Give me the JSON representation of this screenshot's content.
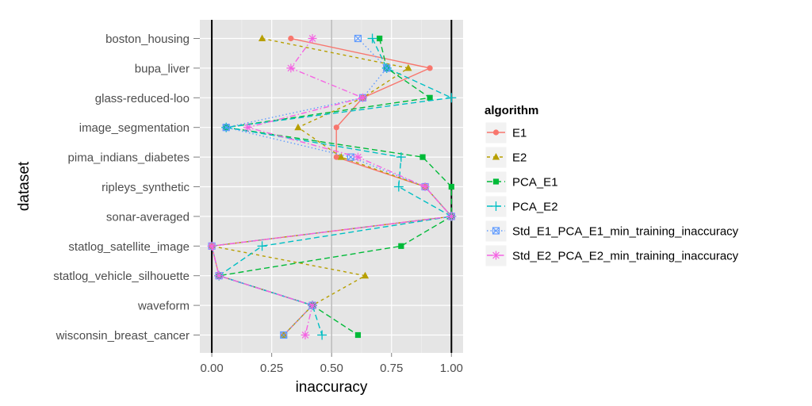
{
  "chart_data": {
    "type": "line",
    "xlabel": "inaccuracy",
    "ylabel": "dataset",
    "xlim": [
      -0.05,
      1.05
    ],
    "x_ticks": [
      "0.00",
      "0.25",
      "0.50",
      "0.75",
      "1.00"
    ],
    "x_tick_values": [
      0,
      0.25,
      0.5,
      0.75,
      1.0
    ],
    "vlines": [
      0,
      1
    ],
    "grid": true,
    "legend_title": "algorithm",
    "legend_position": "right",
    "categories": [
      "boston_housing",
      "bupa_liver",
      "glass-reduced-loo",
      "image_segmentation",
      "pima_indians_diabetes",
      "ripleys_synthetic",
      "sonar-averaged",
      "statlog_satellite_image",
      "statlog_vehicle_silhouette",
      "waveform",
      "wisconsin_breast_cancer"
    ],
    "series": [
      {
        "name": "E1",
        "color": "#F8766D",
        "marker": "circle",
        "dash": "",
        "values": [
          0.33,
          0.91,
          0.63,
          0.52,
          0.52,
          0.89,
          1.0,
          0.0,
          0.03,
          0.42,
          0.3
        ]
      },
      {
        "name": "E2",
        "color": "#B79F00",
        "marker": "triangle",
        "dash": "4,4",
        "values": [
          0.21,
          0.82,
          0.63,
          0.36,
          0.54,
          0.89,
          1.0,
          0.0,
          0.64,
          0.42,
          0.3
        ]
      },
      {
        "name": "PCA_E1",
        "color": "#00BA38",
        "marker": "square",
        "dash": "7,4",
        "values": [
          0.7,
          0.73,
          0.91,
          0.06,
          0.88,
          1.0,
          1.0,
          0.79,
          0.03,
          0.42,
          0.61
        ]
      },
      {
        "name": "PCA_E2",
        "color": "#00BFC4",
        "marker": "plus",
        "dash": "7,4",
        "values": [
          0.67,
          0.73,
          1.0,
          0.06,
          0.79,
          0.78,
          1.0,
          0.21,
          0.03,
          0.42,
          0.46
        ]
      },
      {
        "name": "Std_E1_PCA_E1_min_training_inaccuracy",
        "color": "#619CFF",
        "marker": "boxx",
        "dash": "1.5,3",
        "values": [
          0.61,
          0.73,
          0.63,
          0.06,
          0.58,
          0.89,
          1.0,
          0.0,
          0.03,
          0.42,
          0.3
        ]
      },
      {
        "name": "Std_E2_PCA_E2_min_training_inaccuracy",
        "color": "#F564E3",
        "marker": "asterisk",
        "dash": "7,3,1.5,3",
        "values": [
          0.42,
          0.33,
          0.63,
          0.15,
          0.61,
          0.89,
          1.0,
          0.0,
          0.03,
          0.42,
          0.39
        ]
      }
    ]
  }
}
